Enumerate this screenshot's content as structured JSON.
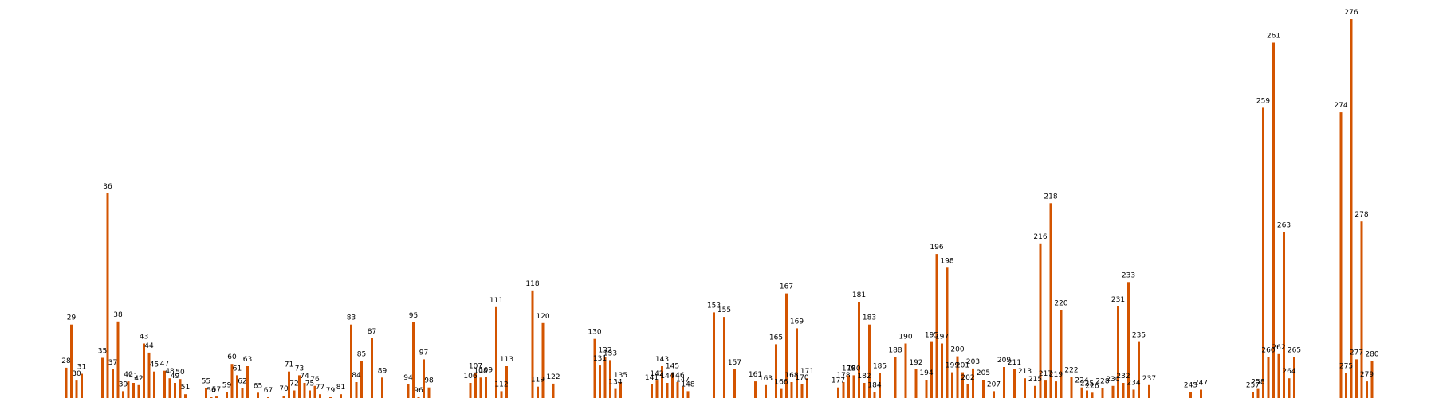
{
  "chart_data": {
    "type": "bar",
    "colors": {
      "bar": "#d35400",
      "label": "#000000",
      "background": "#ffffff"
    },
    "grid": false,
    "bars": [
      {
        "x": 28,
        "label": "28",
        "value": 40
      },
      {
        "x": 29,
        "label": "29",
        "value": 97
      },
      {
        "x": 30,
        "label": "30",
        "value": 23
      },
      {
        "x": 31,
        "label": "31",
        "value": 32
      },
      {
        "x": 35,
        "label": "35",
        "value": 53
      },
      {
        "x": 36,
        "label": "36",
        "value": 270
      },
      {
        "x": 37,
        "label": "37",
        "value": 38
      },
      {
        "x": 38,
        "label": "38",
        "value": 101
      },
      {
        "x": 39,
        "label": "39",
        "value": 9
      },
      {
        "x": 40,
        "label": "40",
        "value": 22
      },
      {
        "x": 41,
        "label": "41",
        "value": 20
      },
      {
        "x": 42,
        "label": "42",
        "value": 17
      },
      {
        "x": 43,
        "label": "43",
        "value": 72
      },
      {
        "x": 44,
        "label": "44",
        "value": 60
      },
      {
        "x": 45,
        "label": "45",
        "value": 35
      },
      {
        "x": 47,
        "label": "47",
        "value": 36
      },
      {
        "x": 48,
        "label": "48",
        "value": 26
      },
      {
        "x": 49,
        "label": "49",
        "value": 20
      },
      {
        "x": 50,
        "label": "50",
        "value": 25
      },
      {
        "x": 51,
        "label": "51",
        "value": 5
      },
      {
        "x": 55,
        "label": "55",
        "value": 13
      },
      {
        "x": 56,
        "label": "56",
        "value": 1
      },
      {
        "x": 57,
        "label": "57",
        "value": 2
      },
      {
        "x": 59,
        "label": "59",
        "value": 8
      },
      {
        "x": 60,
        "label": "60",
        "value": 45
      },
      {
        "x": 61,
        "label": "61",
        "value": 30
      },
      {
        "x": 62,
        "label": "62",
        "value": 13
      },
      {
        "x": 63,
        "label": "63",
        "value": 42
      },
      {
        "x": 65,
        "label": "65",
        "value": 7
      },
      {
        "x": 67,
        "label": "67",
        "value": 1
      },
      {
        "x": 70,
        "label": "70",
        "value": 3
      },
      {
        "x": 71,
        "label": "71",
        "value": 35
      },
      {
        "x": 72,
        "label": "72",
        "value": 10
      },
      {
        "x": 73,
        "label": "73",
        "value": 30
      },
      {
        "x": 74,
        "label": "74",
        "value": 20
      },
      {
        "x": 75,
        "label": "75",
        "value": 10
      },
      {
        "x": 76,
        "label": "76",
        "value": 16
      },
      {
        "x": 77,
        "label": "77",
        "value": 5
      },
      {
        "x": 79,
        "label": "79",
        "value": 1
      },
      {
        "x": 81,
        "label": "81",
        "value": 5
      },
      {
        "x": 83,
        "label": "83",
        "value": 97
      },
      {
        "x": 84,
        "label": "84",
        "value": 21
      },
      {
        "x": 85,
        "label": "85",
        "value": 49
      },
      {
        "x": 87,
        "label": "87",
        "value": 79
      },
      {
        "x": 89,
        "label": "89",
        "value": 27
      },
      {
        "x": 94,
        "label": "94",
        "value": 18
      },
      {
        "x": 95,
        "label": "95",
        "value": 100
      },
      {
        "x": 96,
        "label": "96",
        "value": 1
      },
      {
        "x": 97,
        "label": "97",
        "value": 51
      },
      {
        "x": 98,
        "label": "98",
        "value": 14
      },
      {
        "x": 106,
        "label": "106",
        "value": 20
      },
      {
        "x": 107,
        "label": "107",
        "value": 33
      },
      {
        "x": 108,
        "label": "108",
        "value": 27
      },
      {
        "x": 109,
        "label": "109",
        "value": 28
      },
      {
        "x": 111,
        "label": "111",
        "value": 120
      },
      {
        "x": 112,
        "label": "112",
        "value": 9
      },
      {
        "x": 113,
        "label": "113",
        "value": 42
      },
      {
        "x": 118,
        "label": "118",
        "value": 142
      },
      {
        "x": 119,
        "label": "119",
        "value": 15
      },
      {
        "x": 120,
        "label": "120",
        "value": 99
      },
      {
        "x": 122,
        "label": "122",
        "value": 19
      },
      {
        "x": 130,
        "label": "130",
        "value": 78
      },
      {
        "x": 131,
        "label": "131",
        "value": 43
      },
      {
        "x": 132,
        "label": "132",
        "value": 54
      },
      {
        "x": 133,
        "label": "133",
        "value": 50
      },
      {
        "x": 134,
        "label": "134",
        "value": 12
      },
      {
        "x": 135,
        "label": "135",
        "value": 21
      },
      {
        "x": 141,
        "label": "141",
        "value": 18
      },
      {
        "x": 142,
        "label": "142",
        "value": 23
      },
      {
        "x": 143,
        "label": "143",
        "value": 42
      },
      {
        "x": 144,
        "label": "144",
        "value": 20
      },
      {
        "x": 145,
        "label": "145",
        "value": 33
      },
      {
        "x": 146,
        "label": "146",
        "value": 21
      },
      {
        "x": 147,
        "label": "147",
        "value": 15
      },
      {
        "x": 148,
        "label": "148",
        "value": 9
      },
      {
        "x": 153,
        "label": "153",
        "value": 113
      },
      {
        "x": 155,
        "label": "155",
        "value": 107
      },
      {
        "x": 157,
        "label": "157",
        "value": 38
      },
      {
        "x": 161,
        "label": "161",
        "value": 22
      },
      {
        "x": 163,
        "label": "163",
        "value": 17
      },
      {
        "x": 165,
        "label": "165",
        "value": 71
      },
      {
        "x": 166,
        "label": "166",
        "value": 12
      },
      {
        "x": 167,
        "label": "167",
        "value": 138
      },
      {
        "x": 168,
        "label": "168",
        "value": 21
      },
      {
        "x": 169,
        "label": "169",
        "value": 92
      },
      {
        "x": 170,
        "label": "170",
        "value": 18
      },
      {
        "x": 171,
        "label": "171",
        "value": 26
      },
      {
        "x": 177,
        "label": "177",
        "value": 14
      },
      {
        "x": 178,
        "label": "178",
        "value": 21
      },
      {
        "x": 179,
        "label": "179",
        "value": 30
      },
      {
        "x": 180,
        "label": "180",
        "value": 30
      },
      {
        "x": 181,
        "label": "181",
        "value": 127
      },
      {
        "x": 182,
        "label": "182",
        "value": 20
      },
      {
        "x": 183,
        "label": "183",
        "value": 97
      },
      {
        "x": 184,
        "label": "184",
        "value": 8
      },
      {
        "x": 185,
        "label": "185",
        "value": 33
      },
      {
        "x": 188,
        "label": "188",
        "value": 54
      },
      {
        "x": 190,
        "label": "190",
        "value": 72
      },
      {
        "x": 192,
        "label": "192",
        "value": 38
      },
      {
        "x": 194,
        "label": "194",
        "value": 24
      },
      {
        "x": 195,
        "label": "195",
        "value": 74
      },
      {
        "x": 196,
        "label": "196",
        "value": 190
      },
      {
        "x": 197,
        "label": "197",
        "value": 72
      },
      {
        "x": 198,
        "label": "198",
        "value": 172
      },
      {
        "x": 199,
        "label": "199",
        "value": 34
      },
      {
        "x": 200,
        "label": "200",
        "value": 55
      },
      {
        "x": 201,
        "label": "201",
        "value": 34
      },
      {
        "x": 202,
        "label": "202",
        "value": 18
      },
      {
        "x": 203,
        "label": "203",
        "value": 39
      },
      {
        "x": 205,
        "label": "205",
        "value": 24
      },
      {
        "x": 207,
        "label": "207",
        "value": 9
      },
      {
        "x": 209,
        "label": "209",
        "value": 41
      },
      {
        "x": 211,
        "label": "211",
        "value": 38
      },
      {
        "x": 213,
        "label": "213",
        "value": 26
      },
      {
        "x": 215,
        "label": "215",
        "value": 16
      },
      {
        "x": 216,
        "label": "216",
        "value": 204
      },
      {
        "x": 217,
        "label": "217",
        "value": 23
      },
      {
        "x": 218,
        "label": "218",
        "value": 257
      },
      {
        "x": 219,
        "label": "219",
        "value": 22
      },
      {
        "x": 220,
        "label": "220",
        "value": 116
      },
      {
        "x": 222,
        "label": "222",
        "value": 28
      },
      {
        "x": 224,
        "label": "224",
        "value": 14
      },
      {
        "x": 225,
        "label": "225",
        "value": 10
      },
      {
        "x": 226,
        "label": "226",
        "value": 7
      },
      {
        "x": 228,
        "label": "228",
        "value": 13
      },
      {
        "x": 230,
        "label": "230",
        "value": 16
      },
      {
        "x": 231,
        "label": "231",
        "value": 121
      },
      {
        "x": 232,
        "label": "232",
        "value": 20
      },
      {
        "x": 233,
        "label": "233",
        "value": 153
      },
      {
        "x": 234,
        "label": "234",
        "value": 11
      },
      {
        "x": 235,
        "label": "235",
        "value": 74
      },
      {
        "x": 237,
        "label": "237",
        "value": 17
      },
      {
        "x": 245,
        "label": "245",
        "value": 8
      },
      {
        "x": 247,
        "label": "247",
        "value": 11
      },
      {
        "x": 257,
        "label": "257",
        "value": 8
      },
      {
        "x": 258,
        "label": "258",
        "value": 12
      },
      {
        "x": 259,
        "label": "259",
        "value": 383
      },
      {
        "x": 260,
        "label": "260",
        "value": 54
      },
      {
        "x": 261,
        "label": "261",
        "value": 469
      },
      {
        "x": 262,
        "label": "262",
        "value": 58
      },
      {
        "x": 263,
        "label": "263",
        "value": 219
      },
      {
        "x": 264,
        "label": "264",
        "value": 26
      },
      {
        "x": 265,
        "label": "265",
        "value": 54
      },
      {
        "x": 274,
        "label": "274",
        "value": 377
      },
      {
        "x": 275,
        "label": "275",
        "value": 33
      },
      {
        "x": 276,
        "label": "276",
        "value": 500
      },
      {
        "x": 277,
        "label": "277",
        "value": 51
      },
      {
        "x": 278,
        "label": "278",
        "value": 233
      },
      {
        "x": 279,
        "label": "279",
        "value": 22
      },
      {
        "x": 280,
        "label": "280",
        "value": 49
      }
    ]
  }
}
